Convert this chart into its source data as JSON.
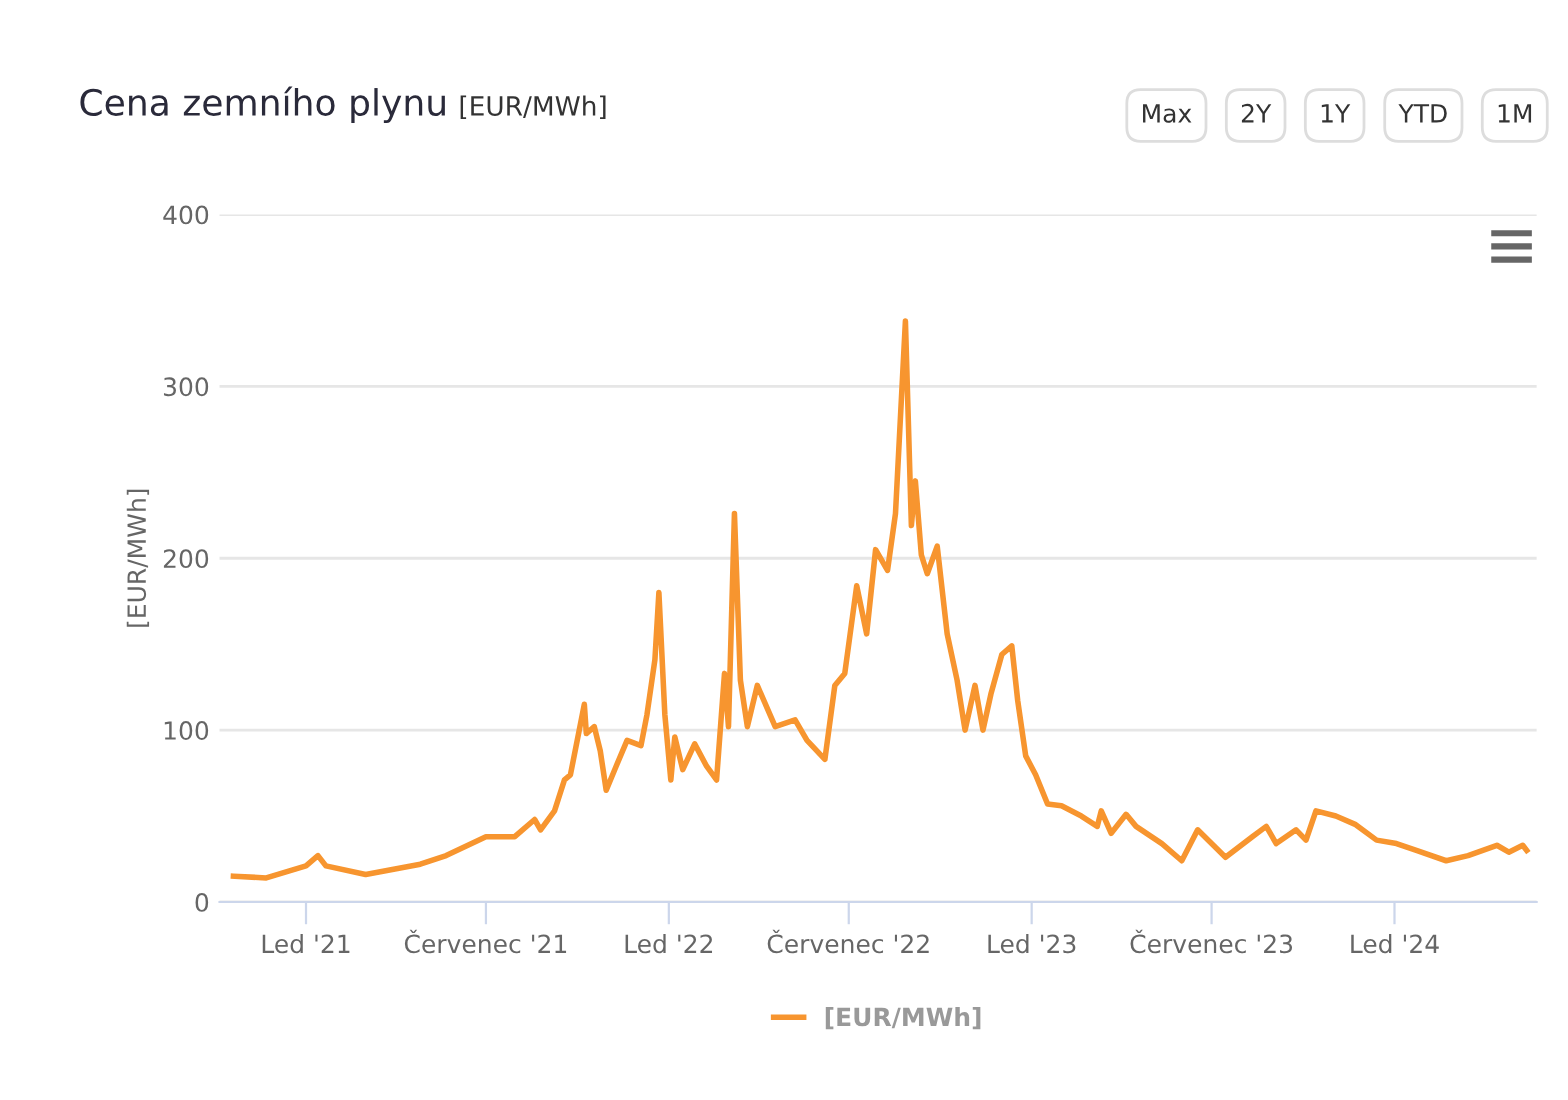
{
  "chart_data": {
    "type": "line",
    "title": "Cena zemního plynu",
    "subtitle": "[EUR/MWh]",
    "ylabel": "[EUR/MWh]",
    "annotations": [
      "Max",
      "2Y",
      "1Y",
      "YTD",
      "1M"
    ],
    "xlim": [
      "2020-10-06",
      "2024-05-23"
    ],
    "ylim": [
      0,
      400
    ],
    "yticks": [
      0,
      100,
      200,
      300,
      400
    ],
    "xticks": [
      {
        "value": "2021-01-01",
        "label": "Led '21"
      },
      {
        "value": "2021-07-01",
        "label": "Červenec '21"
      },
      {
        "value": "2022-01-01",
        "label": "Led '22"
      },
      {
        "value": "2022-07-01",
        "label": "Červenec '22"
      },
      {
        "value": "2023-01-01",
        "label": "Led '23"
      },
      {
        "value": "2023-07-01",
        "label": "Červenec '23"
      },
      {
        "value": "2024-01-01",
        "label": "Led '24"
      }
    ],
    "grid": "y",
    "legend": "bottom",
    "series": [
      {
        "name": "[EUR/MWh]",
        "color": "#f7952f",
        "x": [
          "2020-10-20",
          "2020-11-22",
          "2021-01-01",
          "2021-01-13",
          "2021-01-21",
          "2021-03-02",
          "2021-04-26",
          "2021-05-22",
          "2021-07-01",
          "2021-07-30",
          "2021-08-19",
          "2021-08-25",
          "2021-09-08",
          "2021-09-18",
          "2021-09-24",
          "2021-10-08",
          "2021-10-10",
          "2021-10-18",
          "2021-10-24",
          "2021-10-30",
          "2021-11-09",
          "2021-11-20",
          "2021-12-04",
          "2021-12-10",
          "2021-12-18",
          "2021-12-22",
          "2021-12-28",
          "2022-01-03",
          "2022-01-07",
          "2022-01-15",
          "2022-01-27",
          "2022-02-08",
          "2022-02-18",
          "2022-02-26",
          "2022-03-02",
          "2022-03-08",
          "2022-03-14",
          "2022-03-21",
          "2022-03-31",
          "2022-04-18",
          "2022-05-08",
          "2022-05-20",
          "2022-06-07",
          "2022-06-17",
          "2022-06-27",
          "2022-07-09",
          "2022-07-19",
          "2022-07-28",
          "2022-08-09",
          "2022-08-17",
          "2022-08-27",
          "2022-09-02",
          "2022-09-06",
          "2022-09-12",
          "2022-09-18",
          "2022-09-28",
          "2022-10-08",
          "2022-10-18",
          "2022-10-26",
          "2022-11-05",
          "2022-11-13",
          "2022-11-21",
          "2022-12-02",
          "2022-12-12",
          "2022-12-18",
          "2022-12-26",
          "2023-01-05",
          "2023-01-17",
          "2023-01-31",
          "2023-02-20",
          "2023-03-08",
          "2023-03-12",
          "2023-03-22",
          "2023-04-06",
          "2023-04-16",
          "2023-05-12",
          "2023-06-01",
          "2023-06-17",
          "2023-07-01",
          "2023-07-15",
          "2023-08-11",
          "2023-08-25",
          "2023-09-04",
          "2023-09-24",
          "2023-10-04",
          "2023-10-14",
          "2023-11-03",
          "2023-11-23",
          "2023-12-14",
          "2024-01-03",
          "2024-01-23",
          "2024-02-22",
          "2024-03-15",
          "2024-04-13",
          "2024-04-25",
          "2024-05-09",
          "2024-05-13"
        ],
        "values": [
          15,
          14,
          21,
          27,
          21,
          16,
          22,
          27,
          38,
          38,
          48,
          42,
          53,
          71,
          74,
          115,
          98,
          102,
          88,
          65,
          79,
          94,
          91,
          109,
          141,
          180,
          109,
          71,
          96,
          77,
          92,
          79,
          71,
          133,
          102,
          226,
          129,
          102,
          126,
          102,
          106,
          94,
          83,
          126,
          133,
          184,
          156,
          205,
          193,
          226,
          338,
          219,
          245,
          202,
          191,
          207,
          156,
          129,
          100,
          126,
          100,
          121,
          144,
          149,
          117,
          85,
          74,
          57,
          56,
          50,
          44,
          53,
          40,
          51,
          44,
          34,
          24,
          42,
          34,
          26,
          38,
          44,
          34,
          42,
          36,
          53,
          50,
          45,
          36,
          34,
          30,
          24,
          27,
          33,
          29,
          33,
          30
        ]
      }
    ]
  }
}
